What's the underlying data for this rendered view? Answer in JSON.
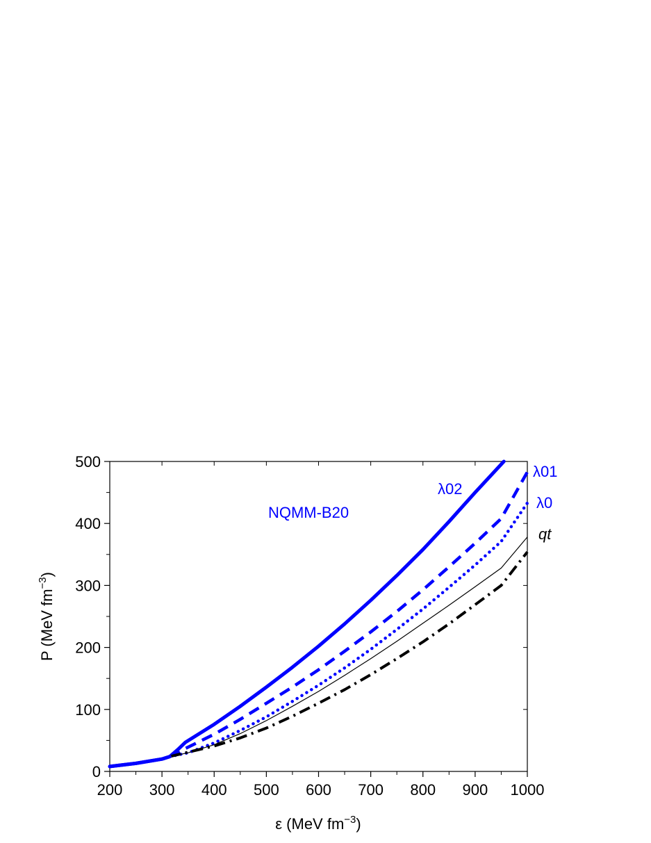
{
  "chart_data": {
    "type": "line",
    "title": "",
    "xlabel": {
      "prefix": "ε (MeV fm",
      "sup": "−3",
      "suffix": ")"
    },
    "ylabel": {
      "prefix": "P (MeV fm",
      "sup": "−3",
      "suffix": ")"
    },
    "xlim": [
      200,
      1000
    ],
    "ylim": [
      0,
      500
    ],
    "x_ticks": [
      200,
      300,
      400,
      500,
      600,
      700,
      800,
      900,
      1000
    ],
    "y_ticks": [
      0,
      100,
      200,
      300,
      400,
      500
    ],
    "grid": false,
    "annotation": {
      "text": "NQMM-B20",
      "x": 480,
      "y": 420,
      "color": "#0000ff"
    },
    "series": [
      {
        "name": "λ02",
        "color": "#0000ff",
        "style": "solid-thick",
        "x": [
          200,
          250,
          300,
          315,
          330,
          345,
          400,
          450,
          500,
          550,
          600,
          650,
          700,
          750,
          800,
          850,
          900,
          955
        ],
        "y": [
          8,
          13,
          20,
          24,
          35,
          47,
          76,
          105,
          136,
          168,
          202,
          238,
          276,
          316,
          358,
          403,
          450,
          500
        ]
      },
      {
        "name": "λ01",
        "color": "#0000ff",
        "style": "dashed",
        "x": [
          315,
          330,
          345,
          400,
          450,
          500,
          550,
          600,
          650,
          700,
          750,
          800,
          850,
          900,
          950,
          1000
        ],
        "y": [
          24,
          30,
          37,
          60,
          84,
          110,
          136,
          164,
          194,
          225,
          258,
          293,
          330,
          368,
          408,
          483
        ]
      },
      {
        "name": "λ0",
        "color": "#0000ff",
        "style": "dotted",
        "x": [
          315,
          350,
          400,
          450,
          500,
          550,
          600,
          650,
          700,
          750,
          800,
          850,
          900,
          950,
          1000
        ],
        "y": [
          24,
          30,
          46,
          66,
          88,
          113,
          139,
          167,
          197,
          229,
          262,
          297,
          333,
          371,
          433
        ]
      },
      {
        "name": "qt",
        "color": "#000000",
        "style": "thin",
        "x": [
          315,
          350,
          400,
          450,
          500,
          550,
          600,
          650,
          700,
          750,
          800,
          850,
          900,
          950,
          1000
        ],
        "y": [
          24,
          30,
          43,
          61,
          82,
          105,
          129,
          155,
          182,
          210,
          239,
          268,
          298,
          328,
          378
        ]
      },
      {
        "name": "",
        "color": "#000000",
        "style": "dashdot",
        "x": [
          315,
          350,
          400,
          450,
          500,
          550,
          600,
          650,
          700,
          750,
          800,
          850,
          900,
          950,
          1000
        ],
        "y": [
          24,
          31,
          41,
          54,
          70,
          89,
          110,
          132,
          156,
          182,
          209,
          238,
          269,
          300,
          354
        ]
      },
      {
        "name": "",
        "color": "#0000ff",
        "style": "solid-thick",
        "x": [
          200,
          250,
          300,
          315
        ],
        "y": [
          8,
          13,
          20,
          24
        ]
      }
    ]
  }
}
